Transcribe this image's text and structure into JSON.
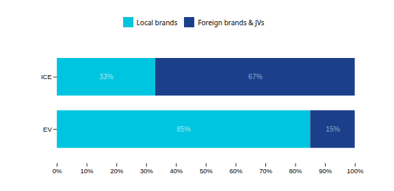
{
  "chart_data": {
    "type": "bar",
    "orientation": "horizontal",
    "stacked": true,
    "categories": [
      "ICE",
      "EV"
    ],
    "series": [
      {
        "name": "Local brands",
        "color": "#00C5E0",
        "values": [
          33,
          85
        ],
        "value_labels": [
          "33%",
          "85%"
        ]
      },
      {
        "name": "Foreign brands & JVs",
        "color": "#1B3F8B",
        "values": [
          67,
          15
        ],
        "value_labels": [
          "67%",
          "15%"
        ]
      }
    ],
    "xlim": [
      0,
      100
    ],
    "xticks": [
      {
        "value": 0,
        "label": "0%"
      },
      {
        "value": 10,
        "label": "10%"
      },
      {
        "value": 20,
        "label": "20%"
      },
      {
        "value": 30,
        "label": "30%"
      },
      {
        "value": 40,
        "label": "40%"
      },
      {
        "value": 50,
        "label": "50%"
      },
      {
        "value": 60,
        "label": "60%"
      },
      {
        "value": 70,
        "label": "70%"
      },
      {
        "value": 80,
        "label": "80%"
      },
      {
        "value": 90,
        "label": "90%"
      },
      {
        "value": 100,
        "label": "100%"
      }
    ],
    "grid": false,
    "legend": "top",
    "data_labels": true
  }
}
